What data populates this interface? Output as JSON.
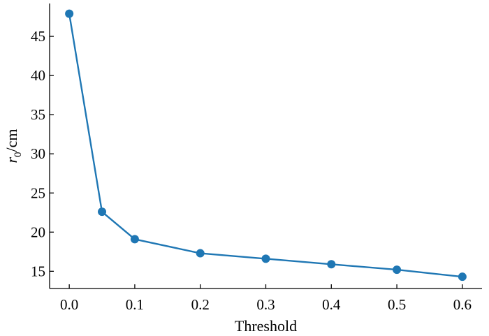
{
  "chart_data": {
    "type": "line",
    "title": "",
    "xlabel": "Threshold",
    "ylabel_main": "r",
    "ylabel_sub": "0",
    "ylabel_unit": "/cm",
    "xlim": [
      -0.03,
      0.63
    ],
    "ylim": [
      12.8,
      49.2
    ],
    "xticks": [
      0.0,
      0.1,
      0.2,
      0.3,
      0.4,
      0.5,
      0.6
    ],
    "xtick_labels": [
      "0.0",
      "0.1",
      "0.2",
      "0.3",
      "0.4",
      "0.5",
      "0.6"
    ],
    "yticks": [
      15,
      20,
      25,
      30,
      35,
      40,
      45
    ],
    "ytick_labels": [
      "15",
      "20",
      "25",
      "30",
      "35",
      "40",
      "45"
    ],
    "grid": false,
    "color": "#1f77b4",
    "series": [
      {
        "x": [
          0.0,
          0.05,
          0.1,
          0.2,
          0.3,
          0.4,
          0.5,
          0.6
        ],
        "values": [
          47.9,
          22.6,
          19.1,
          17.3,
          16.6,
          15.9,
          15.2,
          14.3
        ]
      }
    ]
  }
}
